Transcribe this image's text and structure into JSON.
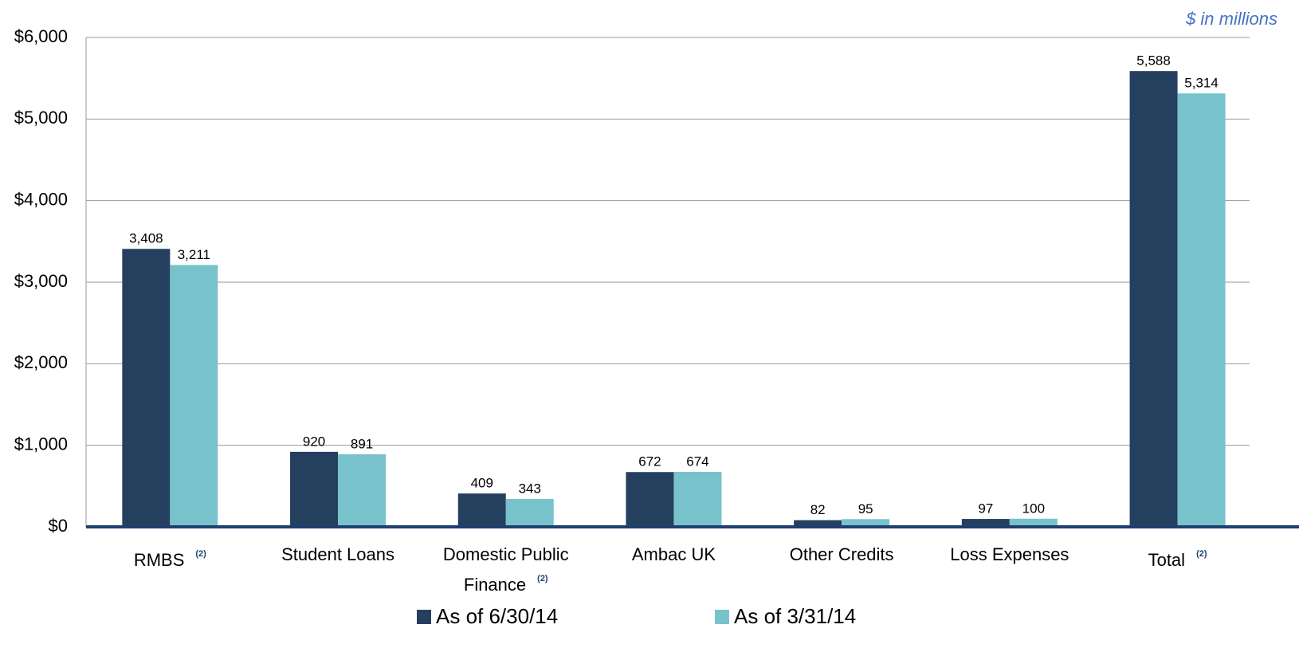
{
  "chart_data": {
    "type": "bar",
    "annotation": "$ in millions",
    "categories": [
      "RMBS",
      "Student Loans",
      "Domestic Public Finance",
      "Ambac UK",
      "Other Credits",
      "Loss Expenses",
      "Total"
    ],
    "category_notes": [
      "(2)",
      null,
      "(2)",
      null,
      null,
      null,
      "(2)"
    ],
    "series": [
      {
        "name": "As of 6/30/14",
        "color": "#253f5f",
        "values": [
          3408,
          920,
          409,
          672,
          82,
          97,
          5588
        ],
        "value_labels": [
          "3,408",
          "920",
          "409",
          "672",
          "82",
          "97",
          "5,588"
        ]
      },
      {
        "name": "As of 3/31/14",
        "color": "#78c3cb",
        "values": [
          3211,
          891,
          343,
          674,
          95,
          100,
          5314
        ],
        "value_labels": [
          "3,211",
          "891",
          "343",
          "674",
          "95",
          "100",
          "5,314"
        ]
      }
    ],
    "ylim": [
      0,
      6000
    ],
    "yticks": [
      {
        "value": 0,
        "label": "$0"
      },
      {
        "value": 1000,
        "label": "$1,000"
      },
      {
        "value": 2000,
        "label": "$2,000"
      },
      {
        "value": 3000,
        "label": "$3,000"
      },
      {
        "value": 4000,
        "label": "$4,000"
      },
      {
        "value": 5000,
        "label": "$5,000"
      },
      {
        "value": 6000,
        "label": "$6,000"
      }
    ],
    "grid": true,
    "legend": "bottom"
  }
}
